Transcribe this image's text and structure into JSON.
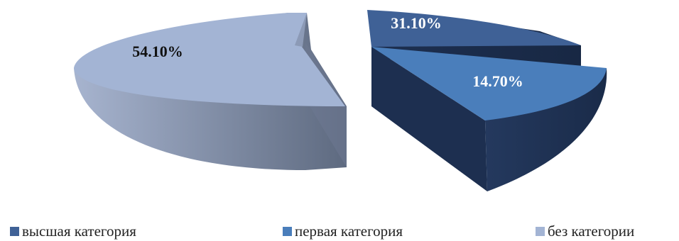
{
  "chart_data": {
    "type": "pie",
    "title": "",
    "exploded": true,
    "three_d": true,
    "legend_position": "bottom",
    "categories": [
      "высшая категория",
      "первая категория",
      "без категории"
    ],
    "values": [
      31.1,
      14.7,
      54.1
    ],
    "data_labels": [
      "31.10%",
      "14.70%",
      "54.10%"
    ],
    "colors": [
      "#3F6196",
      "#4A7EBB",
      "#A3B4D4"
    ]
  }
}
